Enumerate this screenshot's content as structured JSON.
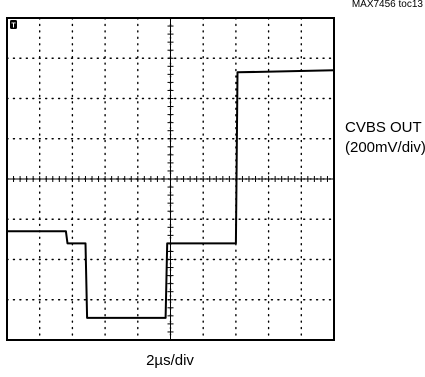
{
  "figure_id": "MAX7456 toc13",
  "trigger_marker": "T",
  "trace_label": {
    "line1": "CVBS OUT",
    "line2": "(200mV/div)"
  },
  "timebase_label": "2µs/div",
  "chart_data": {
    "type": "line",
    "title": "",
    "xlabel": "2µs/div",
    "ylabel": "CVBS OUT (200mV/div)",
    "x_units": "divisions",
    "y_units": "divisions",
    "xlim": [
      0,
      10
    ],
    "ylim": [
      -4,
      4
    ],
    "grid": true,
    "grid_divisions": {
      "x": 10,
      "y": 8
    },
    "series": [
      {
        "name": "CVBS OUT",
        "x": [
          0.0,
          1.8,
          1.85,
          2.4,
          2.45,
          4.85,
          4.9,
          7.0,
          7.05,
          10.0
        ],
        "y": [
          -1.3,
          -1.3,
          -1.6,
          -1.6,
          -3.45,
          -3.45,
          -1.6,
          -1.6,
          2.65,
          2.7
        ]
      }
    ]
  }
}
